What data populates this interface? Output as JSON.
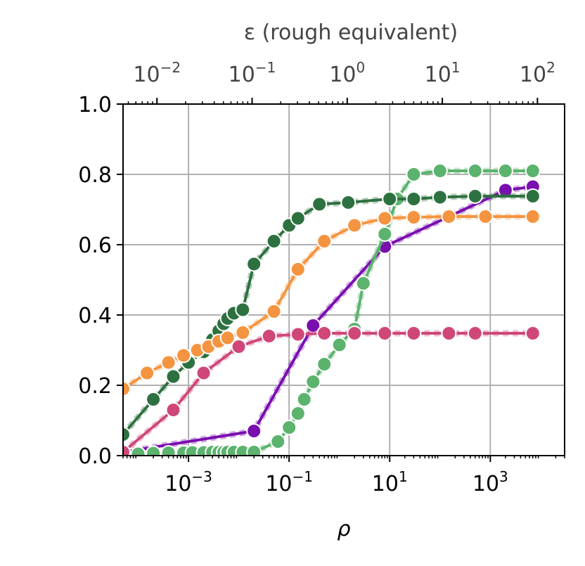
{
  "chart_data": {
    "type": "line",
    "xscale": "log",
    "xlabel": "ρ",
    "xlim": [
      5e-05,
      30000
    ],
    "ylim": [
      0,
      1.0
    ],
    "grid": true,
    "xticks": [
      {
        "value": 0.001,
        "base": "10",
        "exp": "−3"
      },
      {
        "value": 0.1,
        "base": "10",
        "exp": "−1"
      },
      {
        "value": 10,
        "base": "10",
        "exp": "1"
      },
      {
        "value": 1000,
        "base": "10",
        "exp": "3"
      }
    ],
    "yticks": [
      "0.0",
      "0.2",
      "0.4",
      "0.6",
      "0.8",
      "1.0"
    ],
    "top_axis": {
      "label": "ε (rough equivalent)",
      "xlim": [
        0.0044,
        193
      ],
      "ticks": [
        {
          "value": 0.01,
          "base": "10",
          "exp": "−2"
        },
        {
          "value": 0.1,
          "base": "10",
          "exp": "−1"
        },
        {
          "value": 1,
          "base": "10",
          "exp": "0"
        },
        {
          "value": 10,
          "base": "10",
          "exp": "1"
        },
        {
          "value": 100,
          "base": "10",
          "exp": "2"
        }
      ]
    },
    "series": [
      {
        "color": "#7a0fb0",
        "x": [
          5e-05,
          0.02,
          0.3,
          8,
          2000,
          7000
        ],
        "y": [
          0.01,
          0.07,
          0.37,
          0.595,
          0.755,
          0.765
        ]
      },
      {
        "color": "#5bb36d",
        "x": [
          5e-05,
          0.0001,
          0.0002,
          0.0004,
          0.0008,
          0.0012,
          0.002,
          0.003,
          0.004,
          0.005,
          0.006,
          0.008,
          0.012,
          0.02,
          0.06,
          0.1,
          0.15,
          0.2,
          0.3,
          0.5,
          1,
          2,
          3,
          8,
          14,
          30,
          100,
          500,
          2000,
          7000
        ],
        "y": [
          0.005,
          0.005,
          0.007,
          0.008,
          0.008,
          0.009,
          0.009,
          0.01,
          0.01,
          0.01,
          0.01,
          0.01,
          0.01,
          0.01,
          0.04,
          0.08,
          0.12,
          0.16,
          0.21,
          0.26,
          0.315,
          0.36,
          0.49,
          0.63,
          0.73,
          0.8,
          0.81,
          0.81,
          0.81,
          0.81
        ]
      },
      {
        "color": "#2e7140",
        "x": [
          5e-05,
          0.0002,
          0.0005,
          0.001,
          0.002,
          0.003,
          0.004,
          0.005,
          0.006,
          0.008,
          0.012,
          0.02,
          0.05,
          0.1,
          0.15,
          0.4,
          1.5,
          10,
          30,
          100,
          500,
          7000
        ],
        "y": [
          0.06,
          0.16,
          0.225,
          0.265,
          0.295,
          0.33,
          0.355,
          0.375,
          0.39,
          0.405,
          0.415,
          0.545,
          0.61,
          0.655,
          0.675,
          0.715,
          0.72,
          0.73,
          0.73,
          0.735,
          0.738,
          0.738
        ]
      },
      {
        "color": "#f59440",
        "x": [
          5e-05,
          0.00015,
          0.0004,
          0.0008,
          0.0015,
          0.0025,
          0.004,
          0.006,
          0.012,
          0.05,
          0.15,
          0.5,
          2,
          8,
          30,
          150,
          800,
          7000
        ],
        "y": [
          0.19,
          0.235,
          0.265,
          0.285,
          0.3,
          0.31,
          0.325,
          0.335,
          0.35,
          0.41,
          0.53,
          0.61,
          0.655,
          0.675,
          0.678,
          0.68,
          0.68,
          0.68
        ]
      },
      {
        "color": "#cf4779",
        "x": [
          5e-05,
          0.0005,
          0.002,
          0.01,
          0.04,
          0.15,
          0.5,
          2,
          8,
          30,
          150,
          500,
          7000
        ],
        "y": [
          0.01,
          0.13,
          0.235,
          0.31,
          0.34,
          0.345,
          0.348,
          0.348,
          0.348,
          0.348,
          0.348,
          0.348,
          0.348
        ]
      }
    ]
  }
}
